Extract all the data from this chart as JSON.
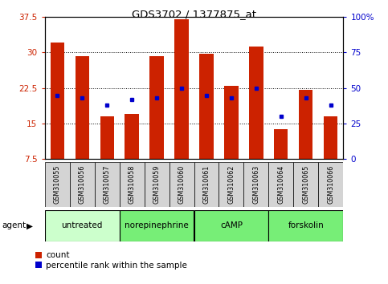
{
  "title": "GDS3702 / 1377875_at",
  "samples": [
    "GSM310055",
    "GSM310056",
    "GSM310057",
    "GSM310058",
    "GSM310059",
    "GSM310060",
    "GSM310061",
    "GSM310062",
    "GSM310063",
    "GSM310064",
    "GSM310065",
    "GSM310066"
  ],
  "count_values": [
    32.2,
    29.3,
    16.5,
    17.0,
    29.3,
    37.0,
    29.8,
    23.0,
    31.2,
    13.8,
    22.2,
    16.5
  ],
  "percentile_values_right": [
    45,
    43,
    38,
    42,
    43,
    50,
    45,
    43,
    50,
    30,
    43,
    38
  ],
  "ylim_left": [
    7.5,
    37.5
  ],
  "ylim_right": [
    0,
    100
  ],
  "yticks_left": [
    7.5,
    15.0,
    22.5,
    30.0,
    37.5
  ],
  "yticks_right": [
    0,
    25,
    50,
    75,
    100
  ],
  "ytick_labels_left": [
    "7.5",
    "15",
    "22.5",
    "30",
    "37.5"
  ],
  "ytick_labels_right": [
    "0",
    "25",
    "50",
    "75",
    "100%"
  ],
  "groups": [
    {
      "label": "untreated",
      "start": 0,
      "end": 3,
      "color": "#ccffcc"
    },
    {
      "label": "norepinephrine",
      "start": 3,
      "end": 6,
      "color": "#77ee77"
    },
    {
      "label": "cAMP",
      "start": 6,
      "end": 9,
      "color": "#77ee77"
    },
    {
      "label": "forskolin",
      "start": 9,
      "end": 12,
      "color": "#77ee77"
    }
  ],
  "bar_color": "#cc2200",
  "percentile_color": "#0000cc",
  "grid_color": "#000000",
  "tick_color_left": "#cc2200",
  "tick_color_right": "#0000cc",
  "agent_label": "agent",
  "legend_labels": [
    "count",
    "percentile rank within the sample"
  ]
}
